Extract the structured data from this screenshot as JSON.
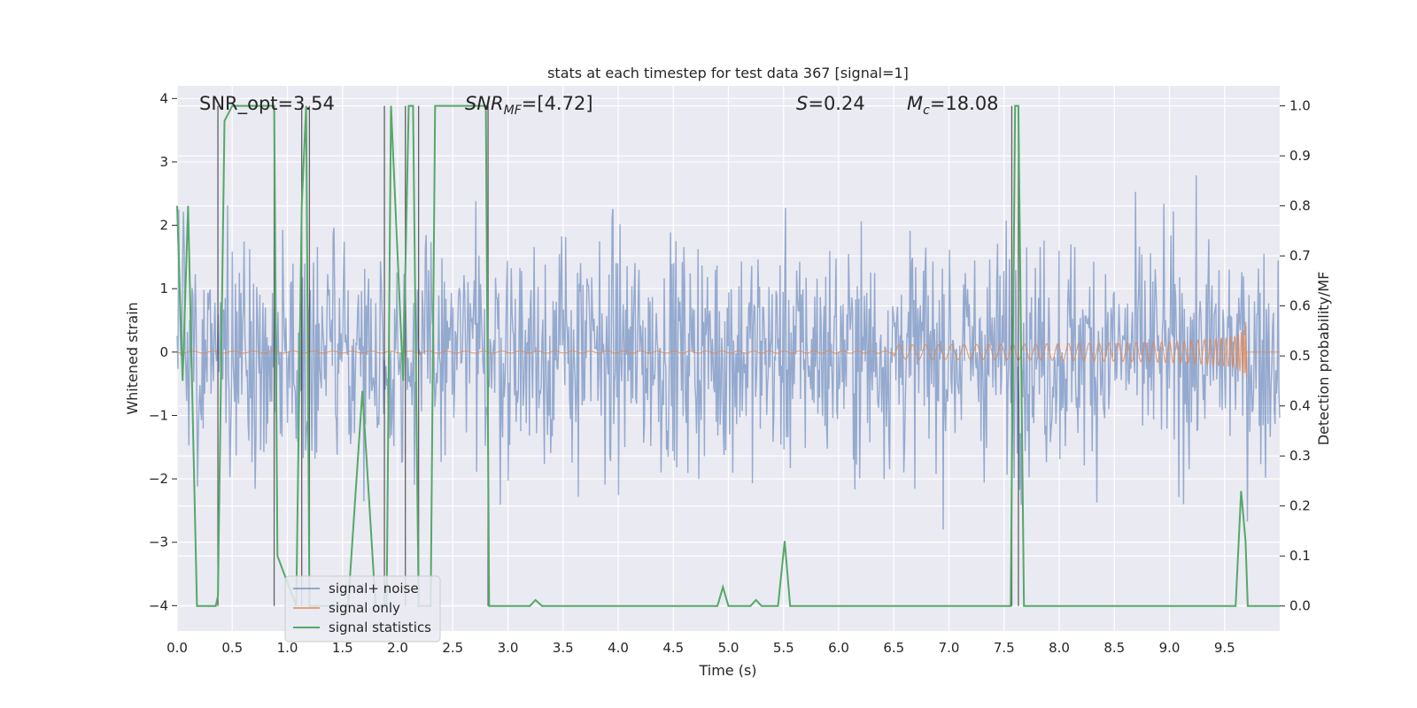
{
  "chart_data": {
    "type": "line",
    "title": "stats at each timestep for test data 367 [signal=1]",
    "xlabel": "Time (s)",
    "ylabel": "Whitened strain",
    "y2label": "Detection probability/MF",
    "xlim": [
      0,
      10
    ],
    "ylim": [
      -4.4,
      4.2
    ],
    "y2lim": [
      -0.05,
      1.04
    ],
    "grid": true,
    "legend_position": "lower-left",
    "x_ticks": [
      "0.0",
      "0.5",
      "1.0",
      "1.5",
      "2.0",
      "2.5",
      "3.0",
      "3.5",
      "4.0",
      "4.5",
      "5.0",
      "5.5",
      "6.0",
      "6.5",
      "7.0",
      "7.5",
      "8.0",
      "8.5",
      "9.0",
      "9.5"
    ],
    "y_ticks": [
      "4",
      "3",
      "2",
      "1",
      "0",
      "−1",
      "−2",
      "−3",
      "−4"
    ],
    "y2_ticks": [
      "1.0",
      "0.9",
      "0.8",
      "0.7",
      "0.6",
      "0.5",
      "0.4",
      "0.3",
      "0.2",
      "0.1",
      "0.0"
    ],
    "annotations": {
      "snr_opt": "SNR_opt=3.54",
      "snr_mf_italic": "SNR",
      "snr_mf_sub": "MF",
      "snr_mf_value": "=[4.72]",
      "s_italic": "S",
      "s_value": "=0.24",
      "mc_italic": "M",
      "mc_sub": "c",
      "mc_value": "=18.08"
    },
    "series": [
      {
        "name": "signal+ noise",
        "color": "#4c72b0",
        "description_of_values": "noise band, whitened strain roughly between -4 and 4"
      },
      {
        "name": "signal only",
        "color": "#dd8452",
        "chirp_end_time": 9.7,
        "chirp_peak_amplitude": 0.6
      },
      {
        "name": "signal statistics",
        "color": "#55a868",
        "axis": "right",
        "x": [
          0.0,
          0.05,
          0.1,
          0.18,
          0.35,
          0.37,
          0.43,
          0.5,
          0.6,
          0.88,
          0.91,
          1.08,
          1.13,
          1.17,
          1.2,
          1.23,
          1.26,
          1.34,
          1.55,
          1.68,
          1.8,
          1.9,
          1.94,
          2.05,
          2.1,
          2.14,
          2.19,
          2.3,
          2.34,
          2.38,
          2.5,
          2.8,
          2.83,
          2.88,
          3.2,
          3.25,
          3.31,
          4.9,
          4.95,
          5.0,
          5.2,
          5.25,
          5.3,
          5.45,
          5.51,
          5.56,
          7.56,
          7.6,
          7.63,
          7.68,
          9.6,
          9.65,
          9.69,
          9.71,
          10.0
        ],
        "values": [
          0.8,
          0.45,
          0.8,
          0.0,
          0.0,
          0.02,
          0.97,
          1.0,
          1.0,
          1.0,
          0.1,
          0.0,
          0.8,
          1.0,
          0.0,
          0.0,
          0.0,
          0.0,
          0.0,
          0.43,
          0.0,
          0.0,
          1.0,
          0.45,
          1.0,
          1.0,
          0.0,
          0.0,
          1.0,
          1.0,
          1.0,
          1.0,
          0.0,
          0.0,
          0.0,
          0.012,
          0.0,
          0.0,
          0.038,
          0.0,
          0.0,
          0.012,
          0.0,
          0.0,
          0.13,
          0.0,
          0.0,
          1.0,
          1.0,
          0.0,
          0.0,
          0.23,
          0.13,
          0.0,
          0.0
        ]
      }
    ],
    "vertical_lines_x": [
      0.37,
      0.88,
      1.13,
      1.2,
      1.88,
      2.07,
      2.19,
      2.82,
      7.57,
      7.63
    ]
  }
}
